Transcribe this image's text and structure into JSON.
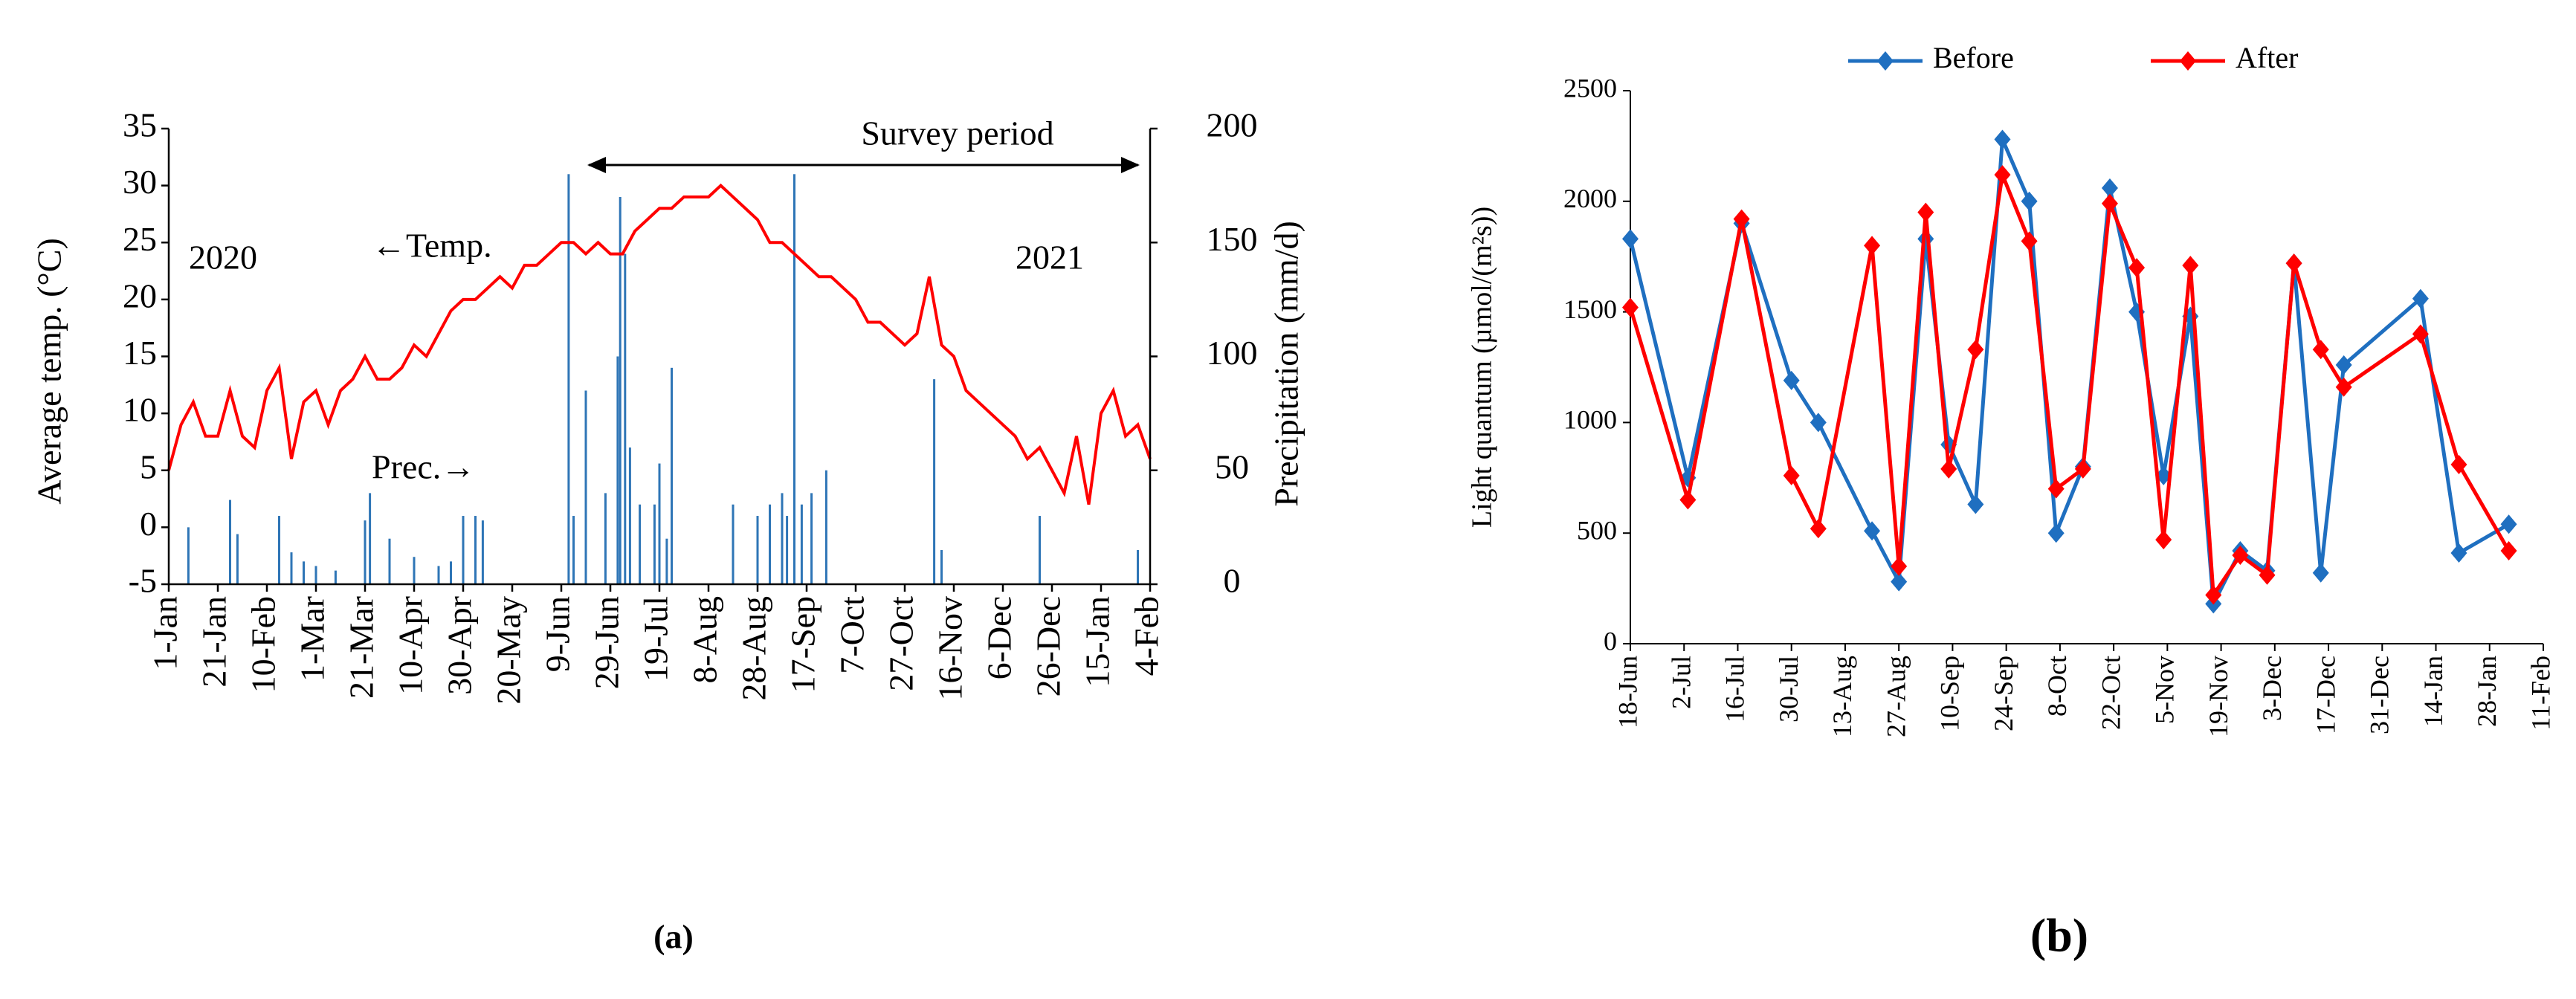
{
  "chart_data": [
    {
      "type": "combo",
      "ylabel": "Average temp. (°C)",
      "y2label": "Precipitation (mm/d)",
      "annotations": [
        "Survey period",
        "2020",
        "2021",
        "←Temp.",
        "Prec.→"
      ],
      "caption": "(a)",
      "xlim": [
        0,
        400
      ],
      "xticks": [
        {
          "value": 0,
          "label": "1-Jan"
        },
        {
          "value": 20,
          "label": "21-Jan"
        },
        {
          "value": 40,
          "label": "10-Feb"
        },
        {
          "value": 60,
          "label": "1-Mar"
        },
        {
          "value": 80,
          "label": "21-Mar"
        },
        {
          "value": 100,
          "label": "10-Apr"
        },
        {
          "value": 120,
          "label": "30-Apr"
        },
        {
          "value": 140,
          "label": "20-May"
        },
        {
          "value": 160,
          "label": "9-Jun"
        },
        {
          "value": 180,
          "label": "29-Jun"
        },
        {
          "value": 200,
          "label": "19-Jul"
        },
        {
          "value": 220,
          "label": "8-Aug"
        },
        {
          "value": 240,
          "label": "28-Aug"
        },
        {
          "value": 260,
          "label": "17-Sep"
        },
        {
          "value": 280,
          "label": "7-Oct"
        },
        {
          "value": 300,
          "label": "27-Oct"
        },
        {
          "value": 320,
          "label": "16-Nov"
        },
        {
          "value": 340,
          "label": "6-Dec"
        },
        {
          "value": 360,
          "label": "26-Dec"
        },
        {
          "value": 380,
          "label": "15-Jan"
        },
        {
          "value": 400,
          "label": "4-Feb"
        }
      ],
      "ylim": [
        -5,
        35
      ],
      "yticks": [
        -5,
        0,
        5,
        10,
        15,
        20,
        25,
        30,
        35
      ],
      "y2lim": [
        0,
        200
      ],
      "y2ticks": [
        0,
        50,
        100,
        150,
        200
      ],
      "series": [
        {
          "type": "line",
          "color": "#ff0000",
          "x": [
            0,
            5,
            10,
            15,
            20,
            25,
            30,
            35,
            40,
            45,
            50,
            55,
            60,
            65,
            70,
            75,
            80,
            85,
            90,
            95,
            100,
            105,
            110,
            115,
            120,
            125,
            130,
            135,
            140,
            145,
            150,
            155,
            160,
            165,
            170,
            175,
            180,
            185,
            190,
            195,
            200,
            205,
            210,
            215,
            220,
            225,
            230,
            235,
            240,
            245,
            250,
            255,
            260,
            265,
            270,
            275,
            280,
            285,
            290,
            295,
            300,
            305,
            310,
            315,
            320,
            325,
            330,
            335,
            340,
            345,
            350,
            355,
            360,
            365,
            370,
            375,
            380,
            385,
            390,
            395,
            400
          ],
          "values": [
            5,
            9,
            11,
            8,
            8,
            12,
            8,
            7,
            12,
            14,
            6,
            11,
            12,
            9,
            12,
            13,
            15,
            13,
            13,
            14,
            16,
            15,
            17,
            19,
            20,
            20,
            21,
            22,
            21,
            23,
            23,
            24,
            25,
            25,
            24,
            25,
            24,
            24,
            26,
            27,
            28,
            28,
            29,
            29,
            29,
            30,
            29,
            28,
            27,
            25,
            25,
            24,
            23,
            22,
            22,
            21,
            20,
            18,
            18,
            17,
            16,
            17,
            22,
            16,
            15,
            12,
            11,
            10,
            9,
            8,
            6,
            7,
            5,
            3,
            8,
            2,
            10,
            12,
            8,
            9,
            6
          ]
        },
        {
          "type": "bar",
          "color": "#2e75b6",
          "axis": "y2",
          "x": [
            8,
            25,
            28,
            45,
            50,
            55,
            60,
            68,
            80,
            82,
            90,
            100,
            110,
            115,
            120,
            125,
            128,
            163,
            165,
            170,
            178,
            183,
            184,
            186,
            188,
            192,
            198,
            200,
            203,
            205,
            230,
            240,
            245,
            250,
            252,
            255,
            258,
            262,
            268,
            312,
            315,
            355,
            395
          ],
          "values": [
            25,
            37,
            22,
            30,
            14,
            10,
            8,
            6,
            28,
            40,
            20,
            12,
            8,
            10,
            30,
            30,
            28,
            180,
            30,
            85,
            40,
            100,
            170,
            145,
            60,
            35,
            35,
            53,
            20,
            95,
            35,
            30,
            35,
            40,
            30,
            180,
            35,
            40,
            50,
            90,
            15,
            30,
            15
          ]
        }
      ]
    },
    {
      "type": "line",
      "ylabel": "Light quantum (µmol/(m²s))",
      "caption": "(b)",
      "xlim": [
        0,
        238
      ],
      "xticks": [
        {
          "value": 0,
          "label": "18-Jun"
        },
        {
          "value": 14,
          "label": "2-Jul"
        },
        {
          "value": 28,
          "label": "16-Jul"
        },
        {
          "value": 42,
          "label": "30-Jul"
        },
        {
          "value": 56,
          "label": "13-Aug"
        },
        {
          "value": 70,
          "label": "27-Aug"
        },
        {
          "value": 84,
          "label": "10-Sep"
        },
        {
          "value": 98,
          "label": "24-Sep"
        },
        {
          "value": 112,
          "label": "8-Oct"
        },
        {
          "value": 126,
          "label": "22-Oct"
        },
        {
          "value": 140,
          "label": "5-Nov"
        },
        {
          "value": 154,
          "label": "19-Nov"
        },
        {
          "value": 168,
          "label": "3-Dec"
        },
        {
          "value": 182,
          "label": "17-Dec"
        },
        {
          "value": 196,
          "label": "31-Dec"
        },
        {
          "value": 210,
          "label": "14-Jan"
        },
        {
          "value": 224,
          "label": "28-Jan"
        },
        {
          "value": 238,
          "label": "11-Feb"
        }
      ],
      "ylim": [
        0,
        2500
      ],
      "yticks": [
        0,
        500,
        1000,
        1500,
        2000,
        2500
      ],
      "x": [
        0,
        15,
        29,
        42,
        49,
        63,
        70,
        77,
        83,
        90,
        97,
        104,
        111,
        118,
        125,
        132,
        139,
        146,
        152,
        159,
        166,
        173,
        180,
        186,
        206,
        216,
        229
      ],
      "series": [
        {
          "name": "Before",
          "color": "#1f6fc0",
          "values": [
            1830,
            750,
            1900,
            1190,
            1000,
            510,
            280,
            1830,
            900,
            630,
            2280,
            2000,
            500,
            800,
            2060,
            1500,
            760,
            1480,
            180,
            420,
            330,
            1720,
            320,
            1260,
            1560,
            410,
            540
          ]
        },
        {
          "name": "After",
          "color": "#ff0000",
          "values": [
            1520,
            650,
            1920,
            760,
            520,
            1800,
            350,
            1950,
            790,
            1330,
            2120,
            1820,
            700,
            790,
            1990,
            1700,
            470,
            1710,
            220,
            400,
            310,
            1720,
            1330,
            1160,
            1400,
            810,
            420
          ]
        }
      ]
    }
  ]
}
